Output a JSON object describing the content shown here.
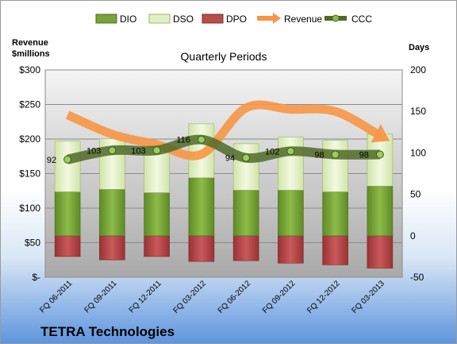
{
  "chart_data": {
    "type": "bar",
    "title": "Quarterly Periods",
    "company": "TETRA Technologies",
    "left_axis_title_line1": "Revenue",
    "left_axis_title_line2": "$millions",
    "right_axis_title": "Days",
    "left_ticks": [
      "$300",
      "$250",
      "$200",
      "$150",
      "$100",
      "$50",
      "$-"
    ],
    "left_tick_values": [
      300,
      250,
      200,
      150,
      100,
      50,
      0
    ],
    "left_ylim": [
      0,
      300
    ],
    "right_ticks": [
      "200",
      "150",
      "100",
      "50",
      "0",
      "-50"
    ],
    "right_tick_values": [
      200,
      150,
      100,
      50,
      0,
      -50
    ],
    "right_ylim": [
      -50,
      200
    ],
    "categories": [
      "FQ 06-2011",
      "FQ 09-2011",
      "FQ 12-2011",
      "FQ 03-2012",
      "FQ 06-2012",
      "FQ 09-2012",
      "FQ 12-2012",
      "FQ 03-2013"
    ],
    "legend": [
      "DIO",
      "DSO",
      "DPO",
      "Revenue",
      "CCC"
    ],
    "series": [
      {
        "name": "DIO",
        "axis": "right",
        "color": "#77a33a",
        "values": [
          53,
          56,
          52,
          70,
          55,
          55,
          53,
          60
        ]
      },
      {
        "name": "DSO",
        "axis": "right",
        "color": "#e2efc6",
        "values": [
          61,
          61,
          57,
          65,
          56,
          64,
          62,
          63
        ]
      },
      {
        "name": "DPO",
        "axis": "right",
        "color": "#b84b4c",
        "values": [
          -25,
          -29,
          -25,
          -31,
          -30,
          -33,
          -35,
          -39
        ]
      },
      {
        "name": "Revenue",
        "axis": "left",
        "color": "#f79646",
        "values": [
          235,
          207,
          192,
          178,
          245,
          243,
          240,
          205
        ]
      },
      {
        "name": "CCC",
        "axis": "right",
        "color": "#4f6b28",
        "values": [
          92,
          103,
          103,
          116,
          94,
          102,
          98,
          98
        ]
      }
    ],
    "ccc_labels": [
      "92",
      "103",
      "103",
      "116",
      "94",
      "102",
      "98",
      "98"
    ],
    "grid": true,
    "legend_position": "top"
  }
}
